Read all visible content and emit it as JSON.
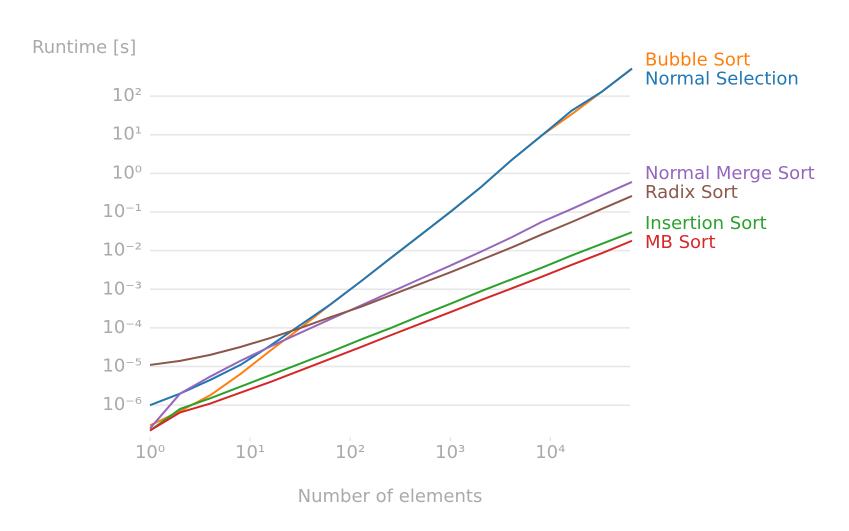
{
  "chart_data": {
    "type": "line",
    "y_label": "Runtime [s]",
    "x_label": "Number of elements",
    "x_log": true,
    "y_log": true,
    "grid": true,
    "legend": "right",
    "x": [
      1,
      2,
      4,
      8,
      16,
      32,
      64,
      128,
      256,
      512,
      1024,
      2048,
      4096,
      8192,
      16384,
      32768,
      65536
    ],
    "xlim": [
      1,
      65536
    ],
    "ylim": [
      1.5e-07,
      600
    ],
    "xticks": [
      {
        "value": 1,
        "label": "10⁰"
      },
      {
        "value": 10,
        "label": "10¹"
      },
      {
        "value": 100,
        "label": "10²"
      },
      {
        "value": 1000,
        "label": "10³"
      },
      {
        "value": 10000,
        "label": "10⁴"
      }
    ],
    "yticks": [
      {
        "value": 1e-06,
        "label": "10⁻⁶"
      },
      {
        "value": 1e-05,
        "label": "10⁻⁵"
      },
      {
        "value": 0.0001,
        "label": "10⁻⁴"
      },
      {
        "value": 0.001,
        "label": "10⁻³"
      },
      {
        "value": 0.01,
        "label": "10⁻²"
      },
      {
        "value": 0.1,
        "label": "10⁻¹"
      },
      {
        "value": 1,
        "label": "10⁰"
      },
      {
        "value": 10,
        "label": "10¹"
      },
      {
        "value": 100,
        "label": "10²"
      }
    ],
    "series": [
      {
        "name": "Bubble Sort",
        "color": "#ff7f0e",
        "values": [
          3e-07,
          7e-07,
          1.8e-06,
          6.4e-06,
          2.6e-05,
          0.0001,
          0.00041,
          0.0016,
          0.0065,
          0.026,
          0.105,
          0.45,
          2.2,
          9.5,
          34,
          130,
          520
        ]
      },
      {
        "name": "Normal Selection",
        "color": "#1f77b4",
        "values": [
          1e-06,
          2e-06,
          4.5e-06,
          1.1e-05,
          3.5e-05,
          0.00012,
          0.00041,
          0.0016,
          0.0065,
          0.026,
          0.105,
          0.45,
          2.2,
          9.5,
          42,
          130,
          510
        ]
      },
      {
        "name": "Normal Merge Sort",
        "color": "#9467bd",
        "values": [
          2.5e-07,
          2e-06,
          5.5e-06,
          1.4e-05,
          3.3e-05,
          7.5e-05,
          0.00017,
          0.00038,
          0.00085,
          0.0019,
          0.0042,
          0.0095,
          0.022,
          0.055,
          0.12,
          0.27,
          0.6
        ]
      },
      {
        "name": "Radix Sort",
        "color": "#8c564b",
        "values": [
          1.1e-05,
          1.4e-05,
          2e-05,
          3.2e-05,
          5.5e-05,
          0.0001,
          0.00019,
          0.00035,
          0.0007,
          0.0014,
          0.0028,
          0.0058,
          0.012,
          0.026,
          0.055,
          0.12,
          0.26
        ]
      },
      {
        "name": "Insertion Sort",
        "color": "#2ca02c",
        "values": [
          2.2e-07,
          8e-07,
          1.5e-06,
          3e-06,
          6e-06,
          1.2e-05,
          2.4e-05,
          5e-05,
          0.0001,
          0.00021,
          0.00043,
          0.0009,
          0.0018,
          0.0036,
          0.0075,
          0.015,
          0.03
        ]
      },
      {
        "name": "MB Sort",
        "color": "#d62728",
        "values": [
          2.2e-07,
          6.5e-07,
          1.1e-06,
          2.1e-06,
          4e-06,
          8e-06,
          1.6e-05,
          3.2e-05,
          6.5e-05,
          0.00013,
          0.00026,
          0.00053,
          0.00105,
          0.0021,
          0.0043,
          0.0086,
          0.018
        ]
      }
    ]
  }
}
